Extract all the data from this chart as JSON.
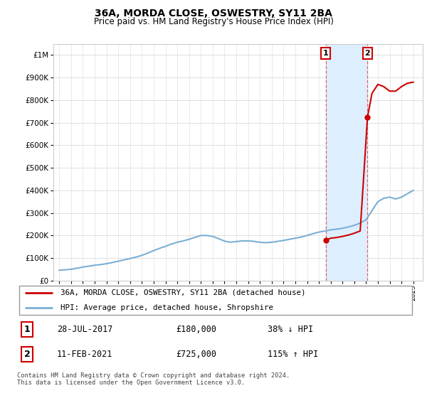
{
  "title": "36A, MORDA CLOSE, OSWESTRY, SY11 2BA",
  "subtitle": "Price paid vs. HM Land Registry's House Price Index (HPI)",
  "hpi_years": [
    1995.0,
    1995.5,
    1996.0,
    1996.5,
    1997.0,
    1997.5,
    1998.0,
    1998.5,
    1999.0,
    1999.5,
    2000.0,
    2000.5,
    2001.0,
    2001.5,
    2002.0,
    2002.5,
    2003.0,
    2003.5,
    2004.0,
    2004.5,
    2005.0,
    2005.5,
    2006.0,
    2006.5,
    2007.0,
    2007.5,
    2008.0,
    2008.5,
    2009.0,
    2009.5,
    2010.0,
    2010.5,
    2011.0,
    2011.5,
    2012.0,
    2012.5,
    2013.0,
    2013.5,
    2014.0,
    2014.5,
    2015.0,
    2015.5,
    2016.0,
    2016.5,
    2017.0,
    2017.5,
    2018.0,
    2018.5,
    2019.0,
    2019.5,
    2020.0,
    2020.5,
    2021.0,
    2021.5,
    2022.0,
    2022.5,
    2023.0,
    2023.5,
    2024.0,
    2024.5,
    2025.0
  ],
  "hpi_values": [
    46000,
    48000,
    50000,
    55000,
    60000,
    64000,
    68000,
    71000,
    75000,
    80000,
    86000,
    92000,
    98000,
    104000,
    112000,
    122000,
    133000,
    143000,
    152000,
    162000,
    170000,
    176000,
    183000,
    192000,
    200000,
    200000,
    196000,
    186000,
    175000,
    170000,
    173000,
    176000,
    176000,
    174000,
    170000,
    168000,
    170000,
    174000,
    178000,
    183000,
    188000,
    193000,
    200000,
    208000,
    215000,
    220000,
    225000,
    228000,
    232000,
    238000,
    245000,
    255000,
    270000,
    310000,
    350000,
    365000,
    370000,
    362000,
    370000,
    385000,
    400000
  ],
  "prop_years": [
    2017.57,
    2017.8,
    2018.0,
    2018.5,
    2019.0,
    2019.5,
    2020.0,
    2020.5,
    2021.12,
    2021.5,
    2022.0,
    2022.5,
    2023.0,
    2023.5,
    2024.0,
    2024.5,
    2025.0
  ],
  "prop_values": [
    180000,
    184000,
    188000,
    191000,
    196000,
    202000,
    210000,
    220000,
    725000,
    830000,
    870000,
    860000,
    840000,
    840000,
    860000,
    875000,
    880000
  ],
  "sale1_year": 2017.57,
  "sale1_price": 180000,
  "sale2_year": 2021.12,
  "sale2_price": 725000,
  "sale1_label": "1",
  "sale2_label": "2",
  "sale1_date": "28-JUL-2017",
  "sale1_amount": "£180,000",
  "sale1_hpi": "38% ↓ HPI",
  "sale2_date": "11-FEB-2021",
  "sale2_amount": "£725,000",
  "sale2_hpi": "115% ↑ HPI",
  "legend1": "36A, MORDA CLOSE, OSWESTRY, SY11 2BA (detached house)",
  "legend2": "HPI: Average price, detached house, Shropshire",
  "footnote": "Contains HM Land Registry data © Crown copyright and database right 2024.\nThis data is licensed under the Open Government Licence v3.0.",
  "hpi_color": "#7bafd4",
  "property_color": "#cc0000",
  "shade_color": "#ddeeff",
  "vline_color": "#dd4444",
  "ylim_max": 1050000,
  "xlim_min": 1994.5,
  "xlim_max": 2025.8
}
